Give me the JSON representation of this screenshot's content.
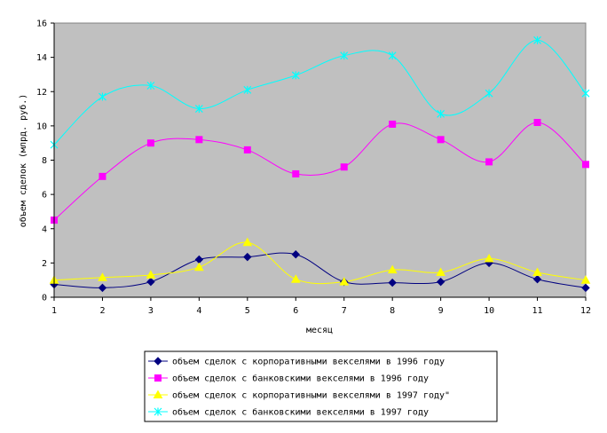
{
  "chart_data": {
    "type": "line",
    "xlabel": "месяц",
    "ylabel": "объем сделок (млрд. руб.)",
    "x": [
      1,
      2,
      3,
      4,
      5,
      6,
      7,
      8,
      9,
      10,
      11,
      12
    ],
    "x_tick_labels": [
      "1",
      "2",
      "3",
      "4",
      "5",
      "6",
      "7",
      "8",
      "9",
      "10",
      "11",
      "12"
    ],
    "ylim": [
      0,
      16
    ],
    "y_ticks": [
      0,
      2,
      4,
      6,
      8,
      10,
      12,
      14,
      16
    ],
    "y_tick_labels": [
      "0",
      "2",
      "4",
      "6",
      "8",
      "10",
      "12",
      "14",
      "16"
    ],
    "grid": false,
    "plot_background": "#c0c0c0",
    "smooth": true,
    "legend_position": "bottom",
    "series": [
      {
        "name": "объем сделок с корпоративными векселями в 1996 году",
        "color": "#000080",
        "marker": "diamond",
        "values": [
          0.75,
          0.55,
          0.9,
          2.2,
          2.35,
          2.5,
          0.9,
          0.85,
          0.9,
          2.0,
          1.05,
          0.55
        ]
      },
      {
        "name": "объем сделок с банковскими векселями в 1996 году",
        "color": "#ff00ff",
        "marker": "square",
        "values": [
          4.5,
          7.05,
          9.0,
          9.2,
          8.6,
          7.2,
          7.6,
          10.1,
          9.2,
          7.9,
          10.2,
          7.75
        ]
      },
      {
        "name": "объем сделок с корпоративными векселями в 1997 году\"",
        "color": "#ffff00",
        "marker": "triangle",
        "values": [
          1.0,
          1.15,
          1.3,
          1.75,
          3.2,
          1.05,
          0.9,
          1.6,
          1.45,
          2.25,
          1.45,
          1.0
        ]
      },
      {
        "name": "объем сделок с банковскими векселями в 1997 году",
        "color": "#00ffff",
        "marker": "star",
        "values": [
          8.9,
          11.7,
          12.35,
          11.0,
          12.1,
          12.95,
          14.1,
          14.1,
          10.7,
          11.9,
          15.0,
          11.9
        ]
      }
    ]
  }
}
